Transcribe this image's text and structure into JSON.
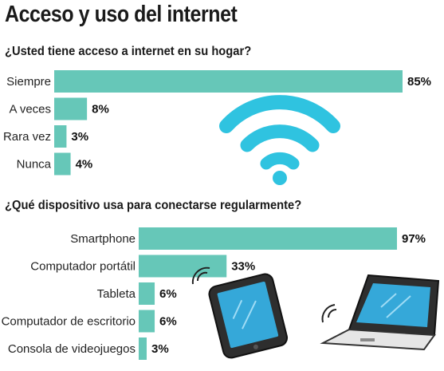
{
  "title": "Acceso y uso del internet",
  "chart_data": [
    {
      "type": "bar",
      "orientation": "horizontal",
      "title": "¿Usted tiene acceso a internet en su hogar?",
      "categories": [
        "Siempre",
        "A veces",
        "Rara vez",
        "Nunca"
      ],
      "values": [
        85,
        8,
        3,
        4
      ],
      "value_labels": [
        "85%",
        "8%",
        "3%",
        "4%"
      ],
      "unit": "%",
      "xlim": [
        0,
        85
      ],
      "grid": false,
      "bar_color": "#66c7b8",
      "illustration": "wifi-icon"
    },
    {
      "type": "bar",
      "orientation": "horizontal",
      "title": "¿Qué dispositivo usa para conectarse regularmente?",
      "categories": [
        "Smartphone",
        "Computador portátil",
        "Tableta",
        "Computador de escritorio",
        "Consola de videojuegos"
      ],
      "values": [
        97,
        33,
        6,
        6,
        3
      ],
      "value_labels": [
        "97%",
        "33%",
        "6%",
        "6%",
        "3%"
      ],
      "unit": "%",
      "xlim": [
        0,
        97
      ],
      "grid": false,
      "bar_color": "#66c7b8",
      "illustrations": [
        "tablet-icon",
        "laptop-icon"
      ]
    }
  ],
  "colors": {
    "bar": "#66c7b8",
    "wifi": "#2fc3e0",
    "device_dark": "#2e2e2e",
    "screen": "#35a8d9"
  }
}
